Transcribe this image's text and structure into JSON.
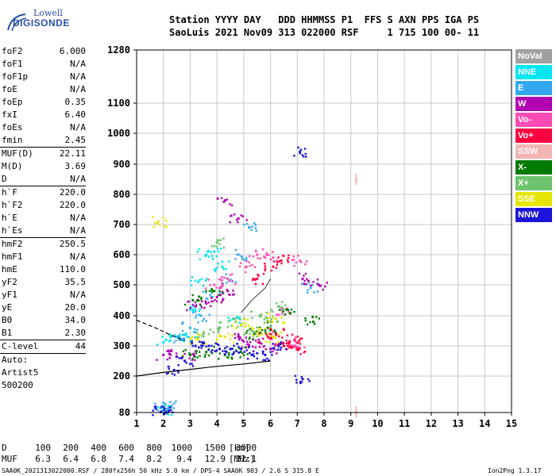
{
  "header": {
    "line1": "Station YYYY DAY   DDD HHMMSS P1  FFS S AXN PPS IGA PS",
    "line2": "SaoLuis 2021 Nov09 313 022000 RSF     1 715 100 00- 11"
  },
  "logo": {
    "top": "Lowell",
    "bottom": "DIGISONDE"
  },
  "params": {
    "group1": [
      {
        "name": "foF2",
        "value": "6.000"
      },
      {
        "name": "foF1",
        "value": "N/A"
      },
      {
        "name": "foF1p",
        "value": "N/A"
      },
      {
        "name": "foE",
        "value": "N/A"
      },
      {
        "name": "foEp",
        "value": "0.35"
      },
      {
        "name": "fxI",
        "value": "6.40"
      },
      {
        "name": "foEs",
        "value": "N/A"
      },
      {
        "name": "fmin",
        "value": "2.45"
      }
    ],
    "group2": [
      {
        "name": "MUF(D)",
        "value": "22.11"
      },
      {
        "name": "M(D)",
        "value": "3.69"
      },
      {
        "name": "D",
        "value": "N/A"
      }
    ],
    "group3": [
      {
        "name": "h`F",
        "value": "220.0"
      },
      {
        "name": "h`F2",
        "value": "220.0"
      },
      {
        "name": "h`E",
        "value": "N/A"
      },
      {
        "name": "h`Es",
        "value": "N/A"
      }
    ],
    "group4": [
      {
        "name": "hmF2",
        "value": "250.5"
      },
      {
        "name": "hmF1",
        "value": "N/A"
      },
      {
        "name": "hmE",
        "value": "110.0"
      },
      {
        "name": "yF2",
        "value": "35.5"
      },
      {
        "name": "yF1",
        "value": "N/A"
      },
      {
        "name": "yE",
        "value": "20.0"
      },
      {
        "name": "B0",
        "value": "34.0"
      },
      {
        "name": "B1",
        "value": "2.30"
      }
    ],
    "clevel": {
      "name": "C-level",
      "value": "44"
    },
    "autoscale": [
      "Auto:",
      "Artist5",
      "500200"
    ]
  },
  "legend": [
    {
      "label": "NoVal",
      "color": "#a0a0a0"
    },
    {
      "label": "NNE",
      "color": "#00e6f0"
    },
    {
      "label": "E",
      "color": "#33a8f0"
    },
    {
      "label": "W",
      "color": "#b000b0"
    },
    {
      "label": "Vo-",
      "color": "#ff4cb4"
    },
    {
      "label": "Vo+",
      "color": "#ff0040"
    },
    {
      "label": "SSW",
      "color": "#f5b4b4"
    },
    {
      "label": "X-",
      "color": "#007a00"
    },
    {
      "label": "X+",
      "color": "#6cc46c"
    },
    {
      "label": "SSE",
      "color": "#e6e600"
    },
    {
      "label": "NNW",
      "color": "#1c14d8"
    }
  ],
  "muf_table": {
    "d_label": "D",
    "d_values": [
      "100",
      "200",
      "400",
      "600",
      "800",
      "1000",
      "1500",
      "3000"
    ],
    "d_unit": "[km]",
    "muf_label": "MUF",
    "muf_values": [
      "6.3",
      "6.4",
      "6.8",
      "7.4",
      "8.2",
      "9.4",
      "12.9",
      "22.1"
    ],
    "muf_unit": "[MHz]"
  },
  "footer": {
    "left": "SAA0K_2021313022000.RSF / 280fx256h 50 kHz 5.0 km / DPS-4 SAA0K 903 / 2.6 S 315.8 E",
    "right": "Ion2Png 1.3.17"
  },
  "chart_data": {
    "type": "scatter",
    "xlabel": "",
    "ylabel": "",
    "xlim": [
      1,
      15
    ],
    "ylim": [
      80,
      1280
    ],
    "x_ticks": [
      1,
      2,
      3,
      4,
      5,
      6,
      7,
      8,
      9,
      10,
      11,
      12,
      13,
      14,
      15
    ],
    "y_ticks": [
      80,
      200,
      300,
      400,
      500,
      600,
      700,
      800,
      900,
      1000,
      1100,
      1280
    ],
    "series": [
      {
        "name": "NNE",
        "color": "#00e6f0",
        "points": [
          [
            2.1,
            320
          ],
          [
            2.5,
            330
          ],
          [
            2.9,
            330
          ],
          [
            3.1,
            420
          ],
          [
            3.3,
            510
          ],
          [
            3.6,
            600
          ],
          [
            3.9,
            610
          ],
          [
            4.2,
            560
          ],
          [
            4.6,
            390
          ],
          [
            2.0,
            90
          ]
        ]
      },
      {
        "name": "E",
        "color": "#33a8f0",
        "points": [
          [
            2.6,
            320
          ],
          [
            3.0,
            360
          ],
          [
            3.4,
            400
          ],
          [
            3.8,
            460
          ],
          [
            4.4,
            520
          ],
          [
            4.8,
            600
          ],
          [
            5.2,
            690
          ],
          [
            7.5,
            490
          ],
          [
            1.9,
            95
          ],
          [
            2.2,
            100
          ]
        ]
      },
      {
        "name": "W",
        "color": "#b000b0",
        "points": [
          [
            2.0,
            270
          ],
          [
            2.5,
            265
          ],
          [
            3.0,
            270
          ],
          [
            3.2,
            430
          ],
          [
            3.6,
            440
          ],
          [
            4.0,
            460
          ],
          [
            4.4,
            480
          ],
          [
            4.8,
            330
          ],
          [
            5.2,
            300
          ],
          [
            5.6,
            310
          ],
          [
            6.0,
            290
          ],
          [
            7.2,
            520
          ],
          [
            7.8,
            500
          ],
          [
            4.3,
            780
          ],
          [
            4.8,
            720
          ]
        ]
      },
      {
        "name": "Vo-",
        "color": "#ff4cb4",
        "points": [
          [
            3.9,
            500
          ],
          [
            4.4,
            520
          ],
          [
            5.1,
            560
          ],
          [
            5.5,
            600
          ],
          [
            6.1,
            590
          ],
          [
            6.4,
            420
          ],
          [
            6.8,
            300
          ],
          [
            7.0,
            310
          ],
          [
            7.1,
            580
          ]
        ]
      },
      {
        "name": "Vo+",
        "color": "#ff0040",
        "points": [
          [
            5.9,
            330
          ],
          [
            6.2,
            340
          ],
          [
            6.5,
            300
          ],
          [
            6.7,
            310
          ],
          [
            6.9,
            320
          ],
          [
            7.0,
            290
          ],
          [
            6.1,
            560
          ],
          [
            6.4,
            580
          ],
          [
            5.5,
            520
          ]
        ]
      },
      {
        "name": "SSW",
        "color": "#f5b4b4",
        "points": [
          [
            9.2,
            850
          ],
          [
            9.2,
            83
          ]
        ]
      },
      {
        "name": "X-",
        "color": "#007a00",
        "points": [
          [
            3.0,
            270
          ],
          [
            3.6,
            280
          ],
          [
            4.3,
            270
          ],
          [
            4.9,
            280
          ],
          [
            5.4,
            340
          ],
          [
            5.9,
            360
          ],
          [
            6.6,
            420
          ],
          [
            7.6,
            380
          ],
          [
            3.1,
            450
          ],
          [
            3.9,
            480
          ]
        ]
      },
      {
        "name": "X+",
        "color": "#6cc46c",
        "points": [
          [
            3.5,
            340
          ],
          [
            4.1,
            360
          ],
          [
            4.7,
            380
          ],
          [
            5.3,
            350
          ],
          [
            5.6,
            400
          ],
          [
            6.0,
            380
          ],
          [
            6.3,
            430
          ],
          [
            4.0,
            640
          ]
        ]
      },
      {
        "name": "SSE",
        "color": "#e6e600",
        "points": [
          [
            3.3,
            320
          ],
          [
            4.3,
            330
          ],
          [
            4.9,
            370
          ],
          [
            5.6,
            350
          ],
          [
            6.1,
            330
          ],
          [
            6.2,
            390
          ],
          [
            1.8,
            710
          ]
        ]
      },
      {
        "name": "NNW",
        "color": "#1c14d8",
        "points": [
          [
            1.9,
            82
          ],
          [
            2.2,
            85
          ],
          [
            2.4,
            220
          ],
          [
            2.8,
            250
          ],
          [
            3.2,
            300
          ],
          [
            3.7,
            300
          ],
          [
            4.1,
            290
          ],
          [
            4.5,
            290
          ],
          [
            4.9,
            290
          ],
          [
            5.3,
            270
          ],
          [
            5.8,
            270
          ],
          [
            6.3,
            300
          ],
          [
            7.1,
            940
          ],
          [
            7.2,
            190
          ]
        ]
      }
    ],
    "curves": [
      {
        "style": "solid",
        "points": [
          [
            1.0,
            200
          ],
          [
            2.0,
            212
          ],
          [
            3.0,
            222
          ],
          [
            4.0,
            232
          ],
          [
            5.0,
            240
          ],
          [
            6.0,
            250
          ]
        ]
      },
      {
        "style": "dashed",
        "points": [
          [
            1.0,
            385
          ],
          [
            1.7,
            360
          ],
          [
            2.3,
            335
          ],
          [
            2.8,
            318
          ]
        ]
      },
      {
        "style": "thin",
        "points": [
          [
            4.9,
            410
          ],
          [
            5.3,
            450
          ],
          [
            5.8,
            490
          ],
          [
            6.0,
            520
          ]
        ]
      }
    ]
  }
}
